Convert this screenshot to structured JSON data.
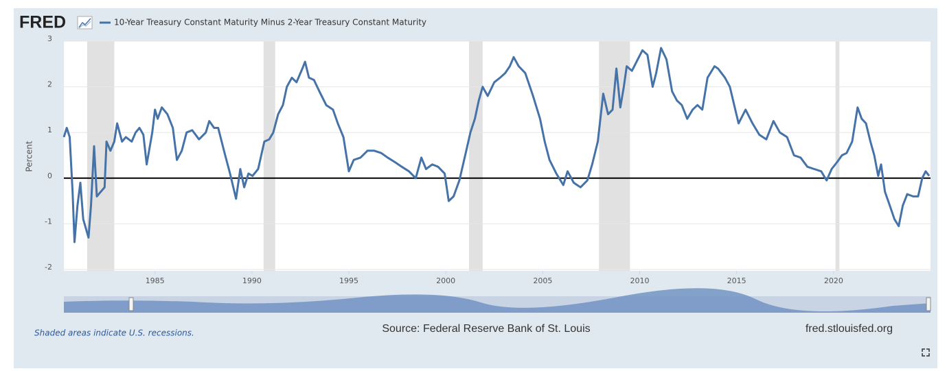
{
  "chart_data": {
    "type": "line",
    "logo": "FRED",
    "ylabel": "Percent",
    "note": "Shaded areas indicate U.S. recessions.",
    "source": "Source: Federal Reserve Bank of St. Louis",
    "site": "fred.stlouisfed.org",
    "xlim": [
      1980.3,
      2025.0
    ],
    "ylim": [
      -2,
      3
    ],
    "xticks": [
      1985,
      1990,
      1995,
      2000,
      2005,
      2010,
      2015,
      2020
    ],
    "yticks": [
      -2,
      -1,
      0,
      1,
      2,
      3
    ],
    "grid": true,
    "recessions": [
      [
        1981.5,
        1982.9
      ],
      [
        1990.6,
        1991.2
      ],
      [
        2001.2,
        2001.9
      ],
      [
        2007.9,
        2009.5
      ],
      [
        2020.1,
        2020.3
      ]
    ],
    "x": [
      1980.3,
      1980.45,
      1980.6,
      1980.75,
      1980.85,
      1981.0,
      1981.15,
      1981.3,
      1981.57,
      1981.7,
      1981.86,
      1982.0,
      1982.2,
      1982.4,
      1982.5,
      1982.7,
      1982.9,
      1983.05,
      1983.3,
      1983.5,
      1983.8,
      1984.0,
      1984.2,
      1984.4,
      1984.57,
      1984.86,
      1985.0,
      1985.14,
      1985.35,
      1985.64,
      1985.92,
      1986.13,
      1986.38,
      1986.63,
      1986.92,
      1987.27,
      1987.62,
      1987.8,
      1988.05,
      1988.26,
      1988.62,
      1988.87,
      1989.18,
      1989.4,
      1989.6,
      1989.82,
      1990.03,
      1990.32,
      1990.64,
      1990.89,
      1991.1,
      1991.35,
      1991.6,
      1991.8,
      1992.06,
      1992.3,
      1992.6,
      1992.74,
      1992.94,
      1993.2,
      1993.48,
      1993.83,
      1994.18,
      1994.43,
      1994.72,
      1995.0,
      1995.25,
      1995.6,
      1995.96,
      1996.31,
      1996.67,
      1997.0,
      1997.38,
      1997.73,
      1998.1,
      1998.45,
      1998.74,
      1998.98,
      1999.3,
      1999.6,
      1999.94,
      2000.15,
      2000.4,
      2000.7,
      2001.0,
      2001.27,
      2001.5,
      2001.7,
      2001.9,
      2002.16,
      2002.5,
      2002.8,
      2003.06,
      2003.3,
      2003.5,
      2003.76,
      2004.1,
      2004.5,
      2004.86,
      2005.1,
      2005.35,
      2005.7,
      2006.06,
      2006.28,
      2006.6,
      2006.95,
      2007.3,
      2007.55,
      2007.84,
      2008.12,
      2008.37,
      2008.6,
      2008.8,
      2009.0,
      2009.18,
      2009.33,
      2009.6,
      2009.9,
      2010.14,
      2010.4,
      2010.67,
      2010.85,
      2011.1,
      2011.38,
      2011.67,
      2011.92,
      2012.17,
      2012.45,
      2012.73,
      2012.98,
      2013.23,
      2013.5,
      2013.86,
      2014.04,
      2014.4,
      2014.65,
      2014.93,
      2015.1,
      2015.46,
      2015.82,
      2016.17,
      2016.53,
      2016.9,
      2017.23,
      2017.6,
      2017.96,
      2018.3,
      2018.65,
      2019.0,
      2019.36,
      2019.64,
      2019.9,
      2020.18,
      2020.43,
      2020.67,
      2020.96,
      2021.24,
      2021.45,
      2021.67,
      2021.9,
      2022.1,
      2022.3,
      2022.45,
      2022.65,
      2022.9,
      2023.14,
      2023.36,
      2023.57,
      2023.8,
      2024.1,
      2024.36,
      2024.57,
      2024.75,
      2024.93
    ],
    "series": [
      {
        "name": "10-Year Treasury Constant Maturity Minus 2-Year Treasury Constant Maturity",
        "color": "#4572a7",
        "values": [
          0.9,
          1.1,
          0.9,
          -0.3,
          -1.4,
          -0.6,
          -0.1,
          -0.9,
          -1.3,
          -0.6,
          0.7,
          -0.4,
          -0.3,
          -0.2,
          0.8,
          0.6,
          0.8,
          1.2,
          0.8,
          0.9,
          0.8,
          1.0,
          1.1,
          0.95,
          0.3,
          1.0,
          1.5,
          1.3,
          1.55,
          1.4,
          1.1,
          0.4,
          0.6,
          1.0,
          1.05,
          0.85,
          1.0,
          1.25,
          1.1,
          1.1,
          0.5,
          0.1,
          -0.45,
          0.2,
          -0.2,
          0.1,
          0.05,
          0.2,
          0.8,
          0.85,
          1.0,
          1.4,
          1.6,
          2.0,
          2.2,
          2.1,
          2.4,
          2.55,
          2.2,
          2.15,
          1.9,
          1.6,
          1.5,
          1.2,
          0.9,
          0.15,
          0.4,
          0.45,
          0.6,
          0.6,
          0.55,
          0.45,
          0.35,
          0.25,
          0.15,
          0.0,
          0.45,
          0.2,
          0.3,
          0.25,
          0.1,
          -0.5,
          -0.4,
          -0.05,
          0.5,
          1.0,
          1.3,
          1.7,
          2.0,
          1.8,
          2.1,
          2.2,
          2.3,
          2.45,
          2.65,
          2.45,
          2.3,
          1.8,
          1.3,
          0.8,
          0.4,
          0.1,
          -0.15,
          0.15,
          -0.1,
          -0.2,
          -0.05,
          0.3,
          0.8,
          1.85,
          1.4,
          1.5,
          2.4,
          1.55,
          2.0,
          2.45,
          2.35,
          2.6,
          2.8,
          2.7,
          2.0,
          2.3,
          2.85,
          2.6,
          1.9,
          1.7,
          1.6,
          1.3,
          1.5,
          1.6,
          1.5,
          2.2,
          2.45,
          2.4,
          2.2,
          2.0,
          1.5,
          1.2,
          1.5,
          1.2,
          0.95,
          0.85,
          1.25,
          1.0,
          0.9,
          0.5,
          0.45,
          0.25,
          0.2,
          0.15,
          -0.05,
          0.2,
          0.35,
          0.5,
          0.55,
          0.8,
          1.55,
          1.3,
          1.2,
          0.8,
          0.5,
          0.05,
          0.3,
          -0.3,
          -0.6,
          -0.9,
          -1.05,
          -0.6,
          -0.35,
          -0.4,
          -0.4,
          0.0,
          0.15,
          0.05
        ]
      }
    ]
  }
}
